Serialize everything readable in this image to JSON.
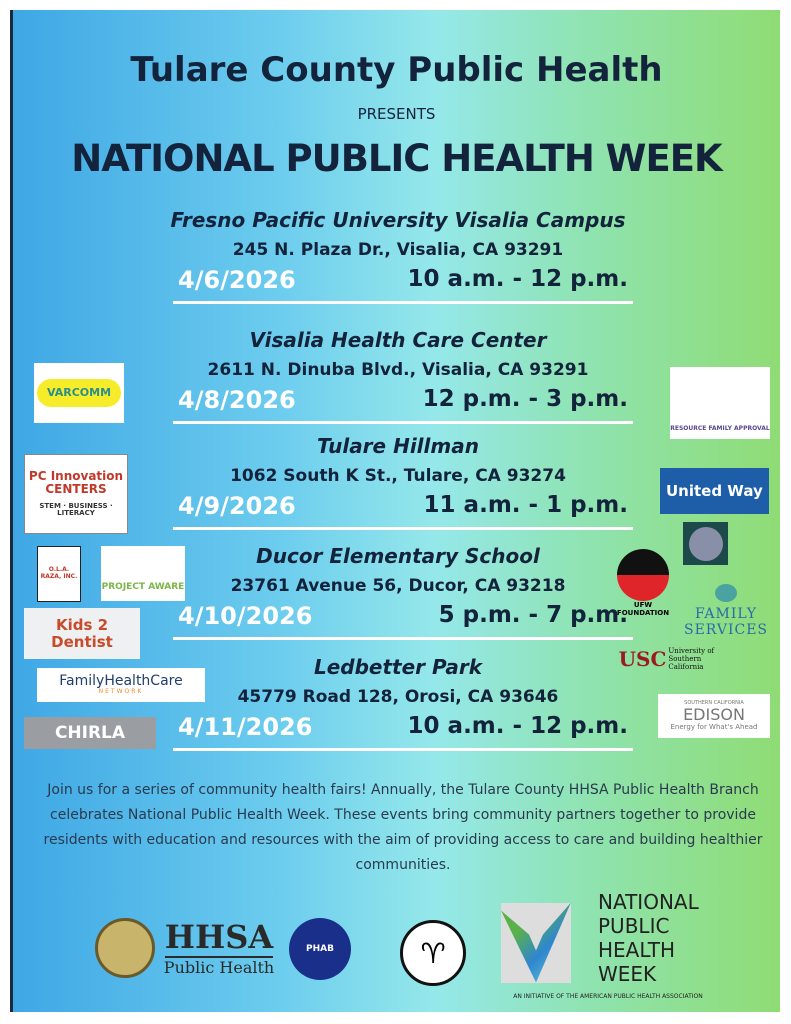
{
  "header": {
    "org": "Tulare County Public Health",
    "presents": "PRESENTS",
    "title": "NATIONAL PUBLIC HEALTH WEEK"
  },
  "events": [
    {
      "name": "Fresno Pacific University Visalia Campus",
      "address": "245 N. Plaza Dr., Visalia, CA 93291",
      "date": "4/6/2026",
      "time": "10 a.m. - 12 p.m."
    },
    {
      "name": "Visalia Health Care Center",
      "address": "2611 N. Dinuba Blvd., Visalia, CA 93291",
      "date": "4/8/2026",
      "time": "12 p.m. - 3 p.m."
    },
    {
      "name": "Tulare Hillman",
      "address": "1062 South K St., Tulare, CA 93274",
      "date": "4/9/2026",
      "time": "11 a.m. - 1 p.m."
    },
    {
      "name": "Ducor Elementary School",
      "address": "23761 Avenue 56, Ducor, CA 93218",
      "date": "4/10/2026",
      "time": "5 p.m. - 7 p.m."
    },
    {
      "name": "Ledbetter Park",
      "address": "45779 Road 128, Orosi, CA 93646",
      "date": "4/11/2026",
      "time": "10 a.m. - 12 p.m."
    }
  ],
  "blurb": "Join us for a series of community health fairs! Annually, the Tulare County HHSA Public Health Branch celebrates National Public Health Week. These events bring community partners together to provide residents with education and resources with the aim of providing access to care and building healthier communities.",
  "logos": {
    "varcomm": "VARCOMM",
    "pc_innovation": "PC Innovation CENTERS",
    "pc_sub": "STEM · BUSINESS · LITERACY",
    "ola_raza": "O.L.A. RAZA, INC.",
    "project_aware": "PROJECT AWARE",
    "kids2dentist": "Kids 2 Dentist",
    "fhc": "FamilyHealthCare",
    "fhc_sub": "NETWORK",
    "chirla": "CHIRLA",
    "rfa": "RESOURCE FAMILY APPROVAL",
    "united_way": "United Way",
    "ufw": "UFW FOUNDATION",
    "family_services": "FAMILY SERVICES",
    "usc": "USC",
    "usc_sub": "University of Southern California",
    "sce_top": "SOUTHERN CALIFORNIA",
    "sce": "EDISON",
    "sce_tag": "Energy for What's Ahead",
    "hhsa": "HHSA",
    "hhsa_sub": "Public Health",
    "phab": "PHAB",
    "nphw": "NATIONAL PUBLIC HEALTH WEEK",
    "nphw_tag": "AN INITIATIVE OF THE AMERICAN PUBLIC HEALTH ASSOCIATION"
  },
  "colors": {
    "blue": "#3ea7e5",
    "green": "#8fdc74",
    "navy": "#14233c"
  }
}
